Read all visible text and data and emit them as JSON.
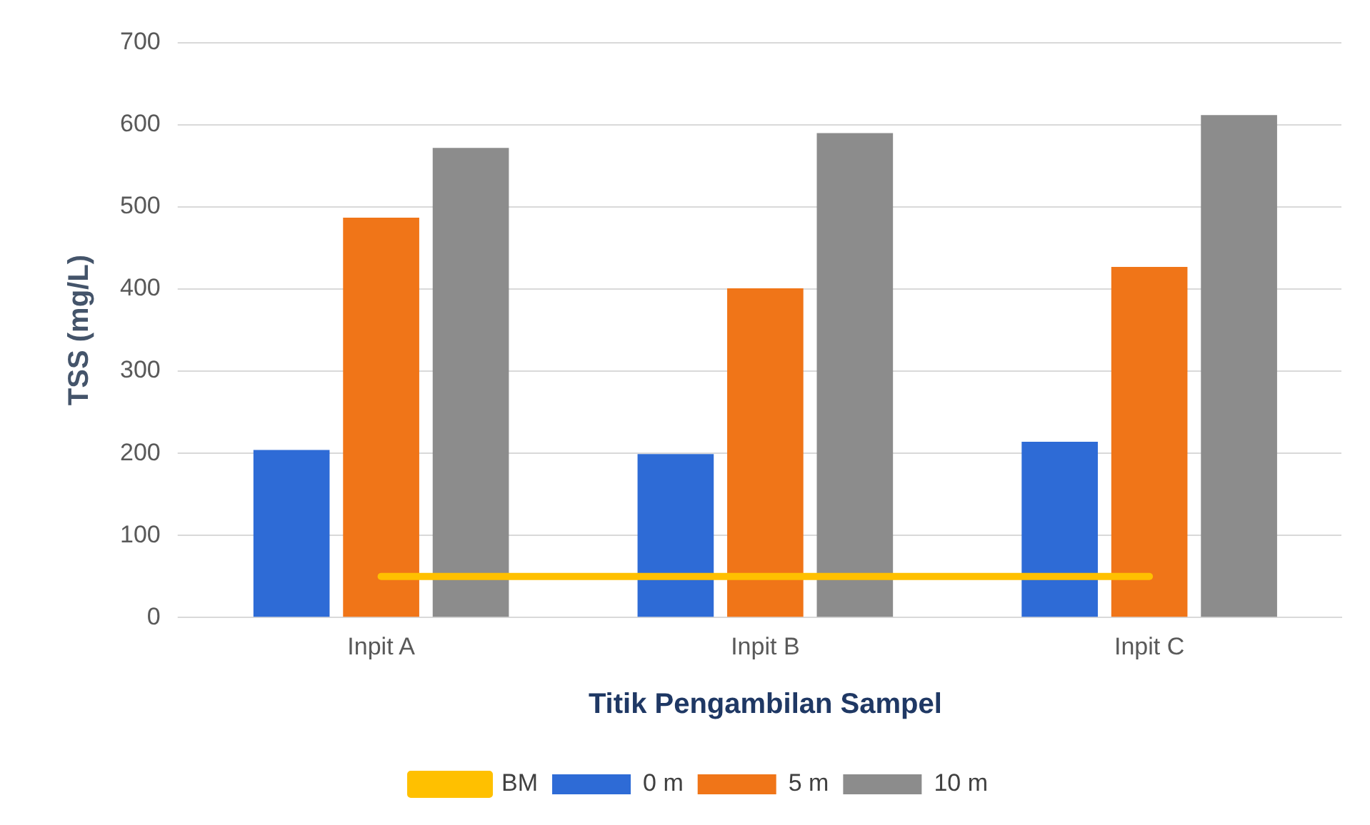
{
  "chart_data": {
    "type": "bar",
    "xlabel": "Titik Pengambilan Sampel",
    "ylabel": "TSS (mg/L)",
    "categories": [
      "Inpit A",
      "Inpit B",
      "Inpit C"
    ],
    "series": [
      {
        "name": "0 m",
        "color": "#2e6bd6",
        "values": [
          204,
          199,
          214
        ]
      },
      {
        "name": "5 m",
        "color": "#f07518",
        "values": [
          487,
          401,
          427
        ]
      },
      {
        "name": "10 m",
        "color": "#8c8c8c",
        "values": [
          572,
          590,
          612
        ]
      },
      {
        "name": "BM",
        "type": "line",
        "color": "#ffc000",
        "values": [
          50,
          50,
          50
        ],
        "marker": "none"
      }
    ],
    "ylim": [
      0,
      700
    ],
    "yticks": [
      0,
      100,
      200,
      300,
      400,
      500,
      600,
      700
    ],
    "grid": "y",
    "legend": "bottom"
  }
}
